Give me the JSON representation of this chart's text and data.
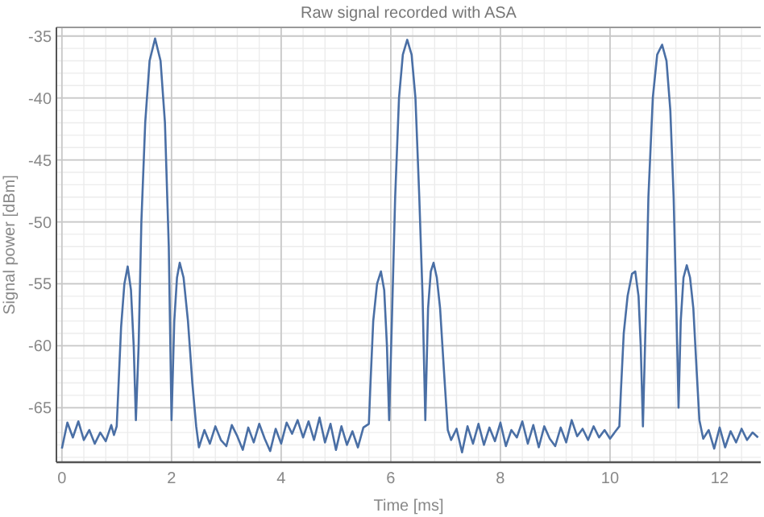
{
  "chart_data": {
    "type": "line",
    "title": "Raw signal recorded with ASA",
    "xlabel": "Time [ms]",
    "ylabel": "Signal power [dBm]",
    "xlim": [
      -0.1,
      12.75
    ],
    "xticks": [
      0,
      2,
      4,
      6,
      8,
      10,
      12
    ],
    "ylim": [
      -69.4,
      -34.3
    ],
    "yticks": [
      -65,
      -60,
      -55,
      -50,
      -45,
      -40,
      -35
    ],
    "grid": true,
    "marker": "none",
    "line_style": "solid",
    "series": [
      {
        "color": "#4a6fa5",
        "x": [
          0,
          0.1,
          0.2,
          0.3,
          0.4,
          0.5,
          0.6,
          0.7,
          0.8,
          0.9,
          0.95,
          1.0,
          1.03,
          1.08,
          1.14,
          1.2,
          1.26,
          1.31,
          1.35,
          1.4,
          1.45,
          1.52,
          1.6,
          1.7,
          1.8,
          1.88,
          1.95,
          2.0,
          2.05,
          2.1,
          2.15,
          2.22,
          2.3,
          2.38,
          2.45,
          2.5,
          2.6,
          2.7,
          2.8,
          2.9,
          3.0,
          3.1,
          3.2,
          3.3,
          3.4,
          3.5,
          3.6,
          3.7,
          3.8,
          3.9,
          4.0,
          4.1,
          4.2,
          4.3,
          4.4,
          4.5,
          4.6,
          4.7,
          4.8,
          4.9,
          5.0,
          5.1,
          5.2,
          5.3,
          5.4,
          5.5,
          5.6,
          5.63,
          5.68,
          5.75,
          5.82,
          5.88,
          5.93,
          5.97,
          6.02,
          6.08,
          6.15,
          6.22,
          6.3,
          6.38,
          6.45,
          6.52,
          6.58,
          6.63,
          6.68,
          6.73,
          6.78,
          6.84,
          6.9,
          6.97,
          7.04,
          7.1,
          7.2,
          7.3,
          7.4,
          7.5,
          7.6,
          7.7,
          7.8,
          7.9,
          8.0,
          8.1,
          8.2,
          8.3,
          8.4,
          8.5,
          8.6,
          8.7,
          8.8,
          8.9,
          9.0,
          9.1,
          9.2,
          9.3,
          9.4,
          9.5,
          9.6,
          9.7,
          9.8,
          9.9,
          10.0,
          10.1,
          10.17,
          10.2,
          10.25,
          10.32,
          10.4,
          10.46,
          10.52,
          10.56,
          10.6,
          10.65,
          10.7,
          10.78,
          10.86,
          10.95,
          11.03,
          11.1,
          11.16,
          11.21,
          11.25,
          11.29,
          11.34,
          11.4,
          11.46,
          11.52,
          11.58,
          11.63,
          11.7,
          11.8,
          11.9,
          12.0,
          12.1,
          12.2,
          12.3,
          12.4,
          12.5,
          12.6,
          12.7
        ],
        "values": [
          -68.3,
          -66.2,
          -67.4,
          -66.1,
          -67.6,
          -66.8,
          -67.9,
          -67.0,
          -67.7,
          -66.4,
          -67.2,
          -66.5,
          -63.5,
          -58.5,
          -55,
          -53.6,
          -55.5,
          -60,
          -66,
          -60,
          -50,
          -42,
          -37,
          -35.2,
          -37,
          -42,
          -52,
          -66,
          -58,
          -54.5,
          -53.3,
          -54.5,
          -58,
          -63,
          -66.5,
          -68.2,
          -66.8,
          -67.9,
          -66.5,
          -67.6,
          -68.1,
          -66.4,
          -67.3,
          -68.4,
          -66.6,
          -67.8,
          -66.3,
          -67.5,
          -68.5,
          -66.7,
          -67.9,
          -66.2,
          -67.1,
          -66.0,
          -67.4,
          -66.1,
          -67.6,
          -65.8,
          -67.8,
          -66.3,
          -68.4,
          -66.5,
          -68.0,
          -66.9,
          -68.2,
          -66.6,
          -66.3,
          -63,
          -58,
          -55,
          -54,
          -55.5,
          -60,
          -66,
          -58,
          -48,
          -40,
          -36.5,
          -35.3,
          -36.5,
          -40,
          -48,
          -56,
          -66,
          -57,
          -54,
          -53.3,
          -54.5,
          -57,
          -62,
          -66.8,
          -67.6,
          -66.7,
          -68.6,
          -66.5,
          -67.9,
          -66.3,
          -68.0,
          -66.6,
          -67.7,
          -66.2,
          -68.1,
          -66.8,
          -67.4,
          -66.1,
          -67.9,
          -66.4,
          -68.2,
          -66.5,
          -67.5,
          -68.1,
          -66.6,
          -67.8,
          -66.0,
          -67.3,
          -66.7,
          -67.6,
          -66.5,
          -67.4,
          -66.8,
          -67.5,
          -66.9,
          -66.5,
          -63.5,
          -59,
          -56,
          -54.2,
          -54,
          -56,
          -60,
          -66.5,
          -58,
          -48,
          -40,
          -36.5,
          -35.7,
          -37,
          -41,
          -48,
          -57,
          -65,
          -58,
          -54.5,
          -53.5,
          -54.5,
          -57,
          -62,
          -66,
          -67.5,
          -66.8,
          -68.3,
          -66.6,
          -68.2,
          -66.9,
          -67.8,
          -66.7,
          -67.6,
          -67.0,
          -67.4
        ]
      }
    ]
  }
}
